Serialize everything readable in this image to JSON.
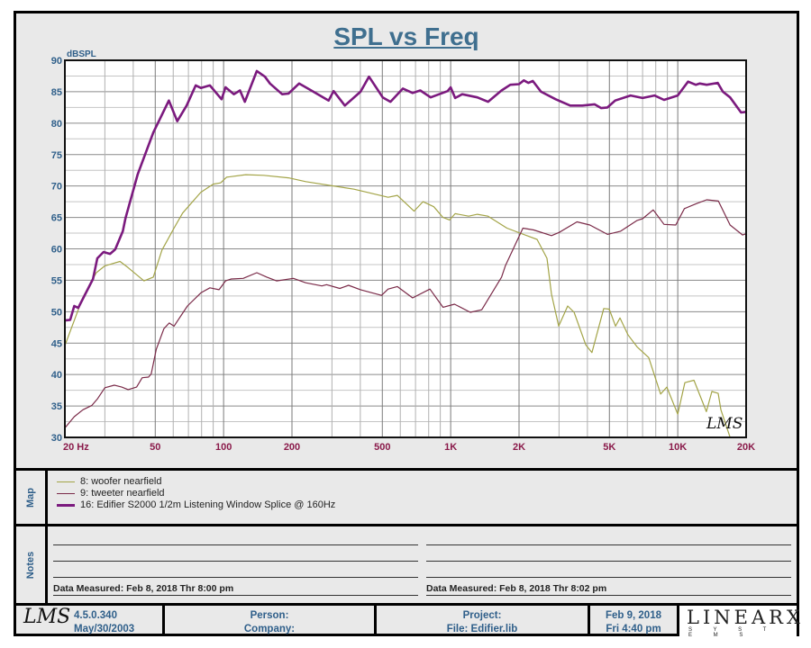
{
  "chart_data": {
    "type": "line",
    "title": "SPL vs Freq",
    "ylabel": "dBSPL",
    "xlabel": "Hz",
    "xscale": "log",
    "xlim": [
      20,
      20000
    ],
    "ylim": [
      30,
      90
    ],
    "yticks": [
      30,
      35,
      40,
      45,
      50,
      55,
      60,
      65,
      70,
      75,
      80,
      85,
      90
    ],
    "xticks": [
      {
        "v": 20,
        "label": "20  Hz"
      },
      {
        "v": 50,
        "label": "50"
      },
      {
        "v": 100,
        "label": "100"
      },
      {
        "v": 200,
        "label": "200"
      },
      {
        "v": 500,
        "label": "500"
      },
      {
        "v": 1000,
        "label": "1K"
      },
      {
        "v": 2000,
        "label": "2K"
      },
      {
        "v": 5000,
        "label": "5K"
      },
      {
        "v": 10000,
        "label": "10K"
      },
      {
        "v": 20000,
        "label": "20K"
      }
    ],
    "grid": true,
    "watermark": "LMS",
    "series": [
      {
        "name": "8: woofer nearfield",
        "color": "#a3a447",
        "width": 1.2,
        "points": [
          [
            20,
            44.6
          ],
          [
            24,
            52.3
          ],
          [
            27.5,
            56.2
          ],
          [
            30,
            57.3
          ],
          [
            35,
            58
          ],
          [
            38,
            57
          ],
          [
            44.6,
            54.9
          ],
          [
            49,
            55.5
          ],
          [
            53.5,
            59.8
          ],
          [
            60.5,
            63.3
          ],
          [
            66,
            65.7
          ],
          [
            79.4,
            69
          ],
          [
            90,
            70.3
          ],
          [
            97,
            70.5
          ],
          [
            103,
            71.4
          ],
          [
            125,
            71.8
          ],
          [
            150,
            71.7
          ],
          [
            193,
            71.3
          ],
          [
            230,
            70.7
          ],
          [
            375,
            69.5
          ],
          [
            530,
            68.2
          ],
          [
            582,
            68.5
          ],
          [
            690,
            66
          ],
          [
            755,
            67.5
          ],
          [
            843,
            66.7
          ],
          [
            925,
            65
          ],
          [
            990,
            64.6
          ],
          [
            1046,
            65.6
          ],
          [
            1200,
            65.2
          ],
          [
            1310,
            65.5
          ],
          [
            1460,
            65.2
          ],
          [
            1770,
            63.3
          ],
          [
            2020,
            62.5
          ],
          [
            2400,
            61.5
          ],
          [
            2654,
            58.5
          ],
          [
            2780,
            52.8
          ],
          [
            2990,
            47.7
          ],
          [
            3275,
            50.9
          ],
          [
            3494,
            49.9
          ],
          [
            3935,
            44.7
          ],
          [
            4190,
            43.5
          ],
          [
            4722,
            50.5
          ],
          [
            4990,
            50.4
          ],
          [
            5320,
            47.7
          ],
          [
            5565,
            49
          ],
          [
            6040,
            46.3
          ],
          [
            6620,
            44.4
          ],
          [
            7450,
            42.7
          ],
          [
            8400,
            36.9
          ],
          [
            8950,
            38
          ],
          [
            10000,
            33.7
          ],
          [
            10740,
            38.7
          ],
          [
            11780,
            39.1
          ],
          [
            13370,
            34.1
          ],
          [
            14130,
            37.3
          ],
          [
            15060,
            37
          ],
          [
            15480,
            34.4
          ],
          [
            16970,
            30.1
          ]
        ]
      },
      {
        "name": "9: tweeter nearfield",
        "color": "#7a2a48",
        "width": 1.2,
        "points": [
          [
            20,
            31.5
          ],
          [
            22,
            33.3
          ],
          [
            24,
            34.4
          ],
          [
            26.3,
            35.1
          ],
          [
            27.8,
            36.1
          ],
          [
            30,
            37.9
          ],
          [
            33,
            38.3
          ],
          [
            35.6,
            38
          ],
          [
            38,
            37.6
          ],
          [
            41.4,
            38
          ],
          [
            43.8,
            39.5
          ],
          [
            46.7,
            39.6
          ],
          [
            48,
            40.1
          ],
          [
            50.5,
            44
          ],
          [
            54.6,
            47.3
          ],
          [
            57.6,
            48.2
          ],
          [
            60.5,
            47.7
          ],
          [
            69.3,
            50.9
          ],
          [
            79.4,
            53
          ],
          [
            87,
            53.8
          ],
          [
            95.5,
            53.5
          ],
          [
            102,
            54.9
          ],
          [
            108,
            55.2
          ],
          [
            122,
            55.3
          ],
          [
            140,
            56.2
          ],
          [
            155,
            55.5
          ],
          [
            171,
            54.9
          ],
          [
            203,
            55.3
          ],
          [
            230,
            54.6
          ],
          [
            271,
            54.1
          ],
          [
            284,
            54.3
          ],
          [
            325,
            53.7
          ],
          [
            355,
            54.2
          ],
          [
            401,
            53.5
          ],
          [
            496,
            52.6
          ],
          [
            530,
            53.6
          ],
          [
            582,
            54
          ],
          [
            680,
            52.2
          ],
          [
            810,
            53.6
          ],
          [
            925,
            50.7
          ],
          [
            1040,
            51.2
          ],
          [
            1220,
            49.9
          ],
          [
            1370,
            50.3
          ],
          [
            1675,
            55.5
          ],
          [
            1740,
            57.3
          ],
          [
            2020,
            62.3
          ],
          [
            2080,
            63.3
          ],
          [
            2320,
            63
          ],
          [
            2780,
            62.1
          ],
          [
            3000,
            62.6
          ],
          [
            3600,
            64.3
          ],
          [
            4100,
            63.8
          ],
          [
            4900,
            62.3
          ],
          [
            5600,
            62.8
          ],
          [
            6600,
            64.5
          ],
          [
            7000,
            64.8
          ],
          [
            7800,
            66.2
          ],
          [
            8700,
            63.9
          ],
          [
            9800,
            63.8
          ],
          [
            10700,
            66.4
          ],
          [
            12100,
            67.2
          ],
          [
            13400,
            67.8
          ],
          [
            15100,
            67.6
          ],
          [
            17000,
            63.8
          ],
          [
            19300,
            62.2
          ],
          [
            20000,
            62.4
          ]
        ]
      },
      {
        "name": "16: Edifier S2000 1/2m Listening Window Splice @ 160Hz",
        "color": "#7b1a7e",
        "width": 2.6,
        "points": [
          [
            20,
            48.6
          ],
          [
            21.1,
            48.7
          ],
          [
            22,
            50.9
          ],
          [
            22.9,
            50.6
          ],
          [
            25,
            53.3
          ],
          [
            26.6,
            55.2
          ],
          [
            27.8,
            58.5
          ],
          [
            29.6,
            59.5
          ],
          [
            31.6,
            59.2
          ],
          [
            33.3,
            59.9
          ],
          [
            36,
            62.8
          ],
          [
            37,
            64.9
          ],
          [
            41.9,
            71.9
          ],
          [
            49,
            78.5
          ],
          [
            57.4,
            83.6
          ],
          [
            62.5,
            80.3
          ],
          [
            68.7,
            82.8
          ],
          [
            75.4,
            86
          ],
          [
            79.4,
            85.6
          ],
          [
            87,
            86
          ],
          [
            98,
            83.8
          ],
          [
            102,
            85.7
          ],
          [
            111,
            84.6
          ],
          [
            118,
            85.2
          ],
          [
            124,
            83.4
          ],
          [
            140,
            88.3
          ],
          [
            152,
            87.4
          ],
          [
            160,
            86.3
          ],
          [
            181,
            84.6
          ],
          [
            193,
            84.7
          ],
          [
            215,
            86.3
          ],
          [
            238,
            85.4
          ],
          [
            290,
            83.6
          ],
          [
            305,
            85.1
          ],
          [
            342,
            82.8
          ],
          [
            401,
            85
          ],
          [
            437,
            87.4
          ],
          [
            502,
            84.1
          ],
          [
            543,
            83.4
          ],
          [
            616,
            85.5
          ],
          [
            680,
            84.8
          ],
          [
            735,
            85.2
          ],
          [
            816,
            84.1
          ],
          [
            970,
            85.1
          ],
          [
            1000,
            85.7
          ],
          [
            1046,
            84
          ],
          [
            1124,
            84.6
          ],
          [
            1310,
            84.1
          ],
          [
            1460,
            83.4
          ],
          [
            1675,
            85.2
          ],
          [
            1830,
            86.1
          ],
          [
            2000,
            86.2
          ],
          [
            2100,
            86.8
          ],
          [
            2200,
            86.4
          ],
          [
            2300,
            86.7
          ],
          [
            2500,
            85
          ],
          [
            2900,
            83.8
          ],
          [
            3360,
            82.8
          ],
          [
            3800,
            82.8
          ],
          [
            4300,
            83
          ],
          [
            4600,
            82.4
          ],
          [
            4900,
            82.5
          ],
          [
            5300,
            83.6
          ],
          [
            6200,
            84.4
          ],
          [
            7000,
            84
          ],
          [
            7900,
            84.4
          ],
          [
            8700,
            83.7
          ],
          [
            10000,
            84.4
          ],
          [
            11100,
            86.6
          ],
          [
            12000,
            86.1
          ],
          [
            12500,
            86.3
          ],
          [
            13400,
            86.1
          ],
          [
            15000,
            86.4
          ],
          [
            15800,
            85
          ],
          [
            17000,
            84.1
          ],
          [
            19000,
            81.7
          ],
          [
            20000,
            81.8
          ]
        ]
      }
    ]
  },
  "map": {
    "label": "Map"
  },
  "notes": {
    "label": "Notes",
    "left_measured": "Data Measured: Feb  8, 2018  Thr  8:00 pm",
    "right_measured": "Data Measured: Feb  8, 2018  Thr  8:02 pm"
  },
  "footer": {
    "logo": "LMS",
    "version": "4.5.0.340",
    "version_date": "May/30/2003",
    "person": "Person:",
    "company": "Company:",
    "project": "Project:",
    "file": "File: Edifier.lib",
    "date": "Feb  9, 2018",
    "time": "Fri  4:40 pm",
    "brand": "LINEARX",
    "brand_sub": "S Y S T E M S"
  }
}
